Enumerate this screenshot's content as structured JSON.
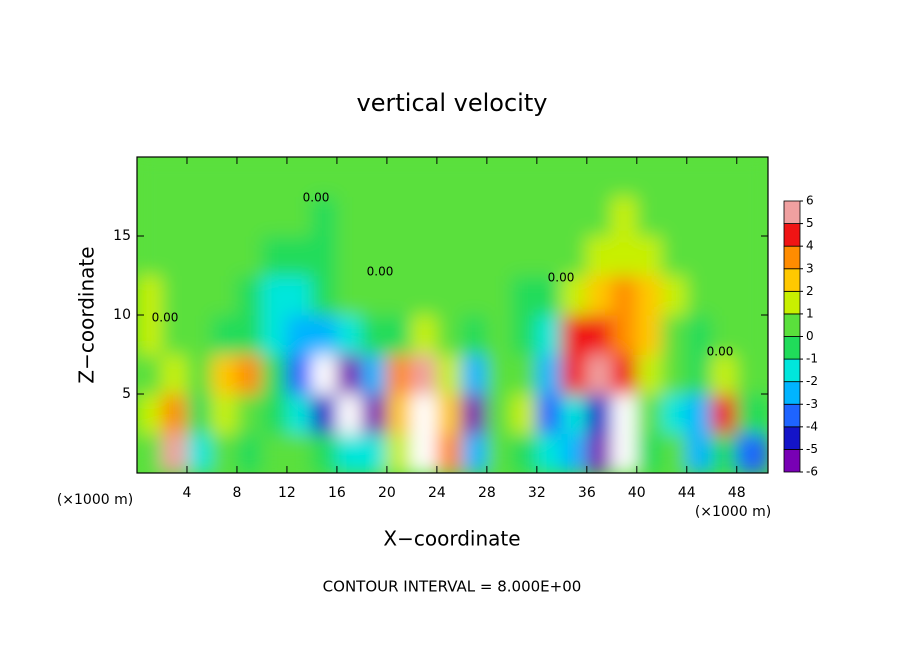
{
  "chart_data": {
    "type": "contour",
    "title": "vertical velocity",
    "xlabel": "X−coordinate",
    "ylabel": "Z−coordinate",
    "x_unit_label": "(×1000 m)",
    "footer": "CONTOUR INTERVAL = 8.000E+00",
    "contour_label": "0.00",
    "xlim": [
      0,
      50.5
    ],
    "ylim": [
      0,
      20
    ],
    "xticks": [
      4,
      8,
      12,
      16,
      20,
      24,
      28,
      32,
      36,
      40,
      44,
      48
    ],
    "yticks": [
      5,
      10,
      15
    ],
    "x": [
      1,
      3,
      5,
      7,
      9,
      11,
      13,
      15,
      17,
      19,
      21,
      23,
      25,
      27,
      29,
      31,
      33,
      35,
      37,
      39,
      41,
      43,
      45,
      47,
      49
    ],
    "y": [
      1.25,
      3.75,
      6.25,
      8.75,
      11.25,
      13.75,
      16.25,
      18.75
    ],
    "z": [
      [
        0,
        6,
        -2,
        0,
        -1,
        0,
        0,
        -1,
        -2,
        -2,
        1,
        7,
        3,
        -3,
        0,
        -1,
        -2,
        -3,
        -6,
        7,
        -1,
        0,
        -3,
        -1,
        -4
      ],
      [
        1,
        3,
        -1,
        1,
        0,
        -1,
        -2,
        -5,
        -7,
        -6,
        2,
        7,
        2,
        -6,
        0,
        1,
        -4,
        -2,
        -5,
        7,
        0,
        -2,
        -3,
        4,
        -1
      ],
      [
        0,
        1,
        0,
        2,
        3,
        -1,
        -4,
        -7,
        -6,
        -3,
        3,
        6,
        1,
        -3,
        0,
        0,
        -3,
        4,
        6,
        4,
        1,
        0,
        -1,
        1,
        0
      ],
      [
        1,
        0,
        0,
        -1,
        -1,
        -2,
        -3,
        -3,
        -2,
        -1,
        -1,
        1,
        0,
        -1,
        0,
        -1,
        -2,
        4,
        4,
        3,
        2,
        0,
        -1,
        0,
        0
      ],
      [
        1,
        0,
        0,
        0,
        -1,
        -2,
        -2,
        -1,
        0,
        0,
        0,
        0,
        0,
        0,
        0,
        -1,
        -1,
        1,
        2,
        3,
        2,
        1,
        0,
        0,
        0
      ],
      [
        0,
        0,
        0,
        0,
        0,
        -1,
        -1,
        -1,
        0,
        0,
        0,
        0,
        0,
        0,
        0,
        0,
        0,
        0,
        1,
        1,
        1,
        0,
        0,
        0,
        0
      ],
      [
        0,
        0,
        0,
        0,
        0,
        0,
        0,
        -1,
        0,
        0,
        0,
        0,
        0,
        0,
        0,
        0,
        0,
        0,
        0,
        1,
        0,
        0,
        0,
        0,
        0
      ],
      [
        0,
        0,
        0,
        0,
        0,
        0,
        0,
        0,
        0,
        0,
        0,
        0,
        0,
        0,
        0,
        0,
        0,
        0,
        0,
        0,
        0,
        0,
        0,
        0,
        0
      ]
    ],
    "colorbar": {
      "levels": [
        -6,
        -5,
        -4,
        -3,
        -2,
        -1,
        0,
        1,
        2,
        3,
        4,
        5,
        6
      ],
      "colors": [
        "#7800b4",
        "#1414c8",
        "#1e64ff",
        "#00b4ff",
        "#00e6dc",
        "#20dc5a",
        "#5ae03c",
        "#c8f000",
        "#ffc800",
        "#ff8c00",
        "#f01414",
        "#f0a0a0"
      ],
      "over_color": "#ffffff",
      "under_color": "#ffffff"
    }
  }
}
